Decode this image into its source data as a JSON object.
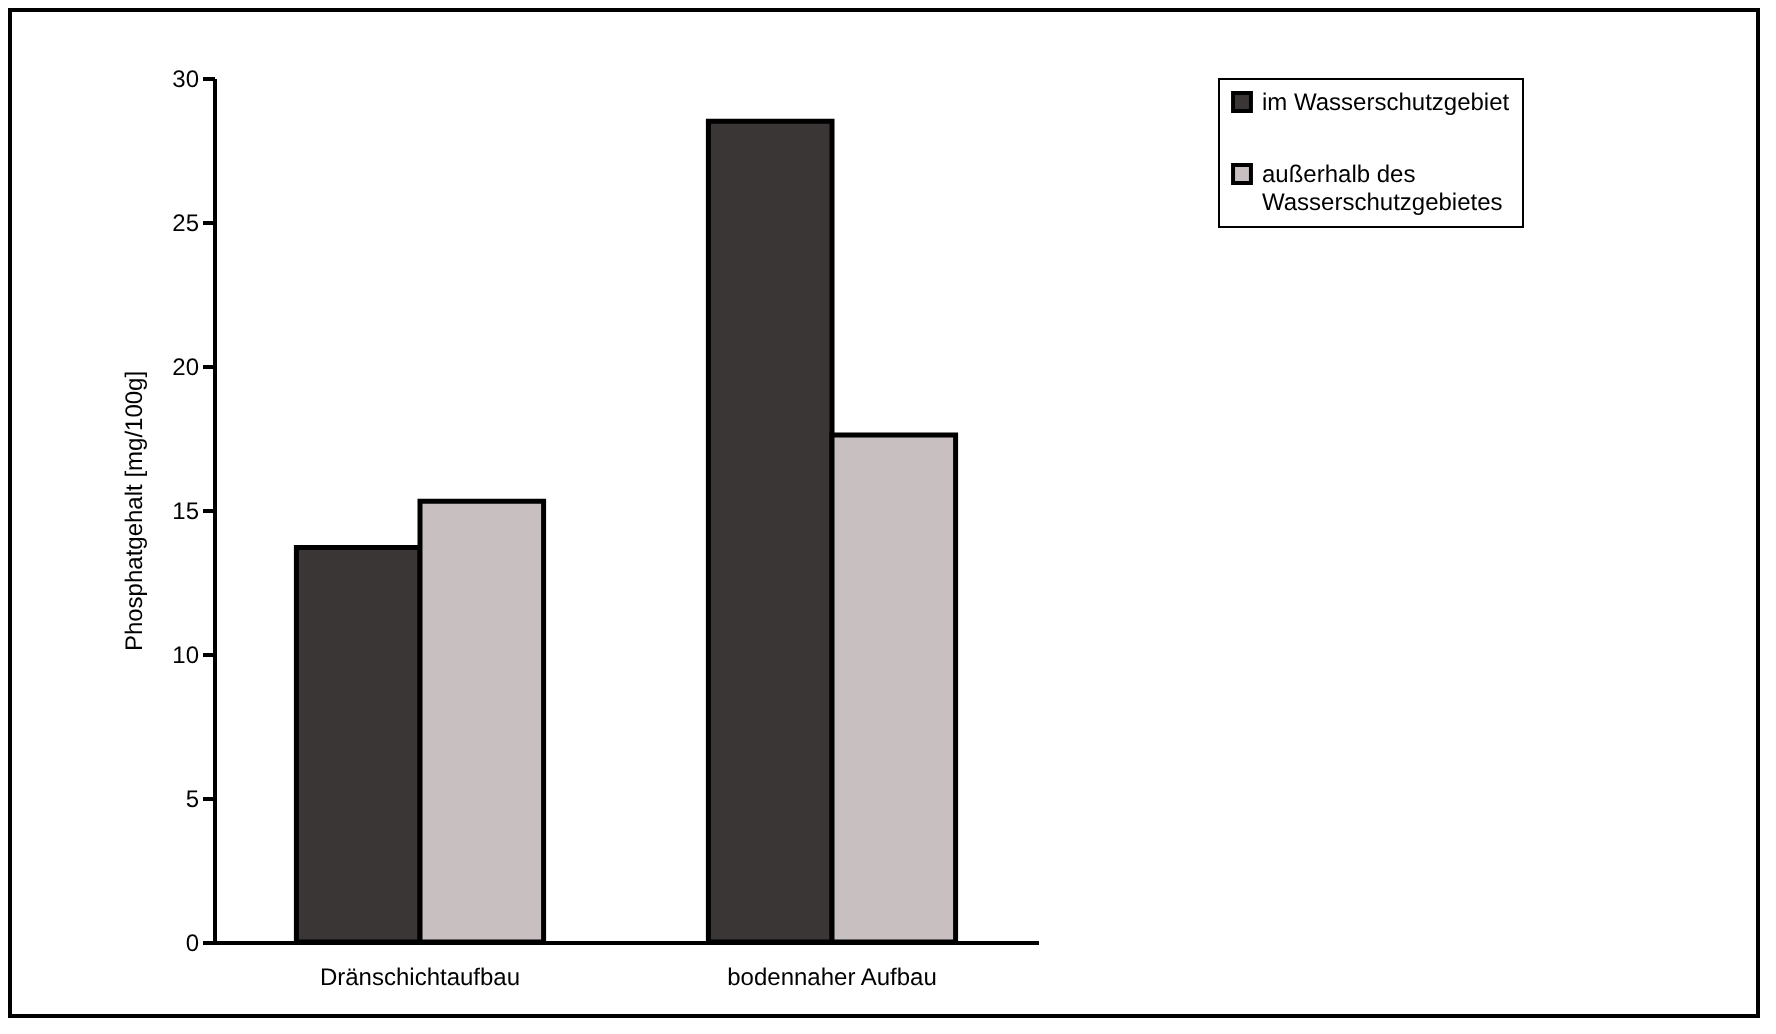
{
  "chart_data": {
    "type": "bar",
    "ylabel": "Phosphatgehalt [mg/100g]",
    "categories": [
      "Dränschichtaufbau",
      "bodennaher Aufbau"
    ],
    "series": [
      {
        "name": "im Wasserschutzgebiet",
        "color": "#3a3636",
        "values": [
          13.7,
          28.5
        ]
      },
      {
        "name": "außerhalb des Wasserschutzgebietes",
        "color": "#c8c0c0",
        "values": [
          15.3,
          17.6
        ]
      }
    ],
    "ylim": [
      0,
      30
    ],
    "yticks": [
      0,
      5,
      10,
      15,
      20,
      25,
      30
    ],
    "grid": false,
    "legend": "right"
  }
}
